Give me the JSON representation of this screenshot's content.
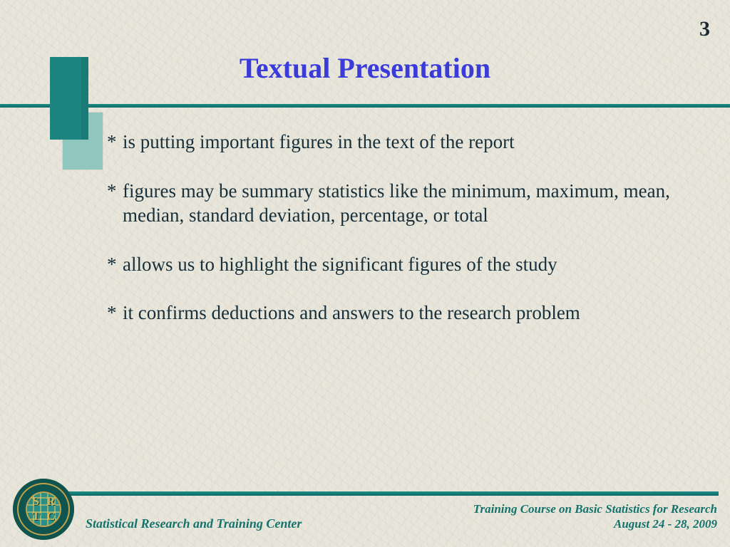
{
  "page_number": "3",
  "title": "Textual Presentation",
  "title_color": "#3b3bd9",
  "accent_color": "#1d857f",
  "body_text_color": "#172f3a",
  "background_color": "#e8e6db",
  "bullets": [
    "is putting important figures in the text of the report",
    "figures may be summary statistics like the minimum, maximum, mean, median, standard deviation, percentage, or total",
    "allows us to highlight the significant figures of the study",
    "it confirms deductions and answers to the research problem"
  ],
  "footer": {
    "left": "Statistical Research and Training Center",
    "right_line1": "Training Course on Basic Statistics for Research",
    "right_line2": "August  24 - 28, 2009"
  },
  "logo_letters": [
    "S",
    "R",
    "T",
    "C"
  ]
}
